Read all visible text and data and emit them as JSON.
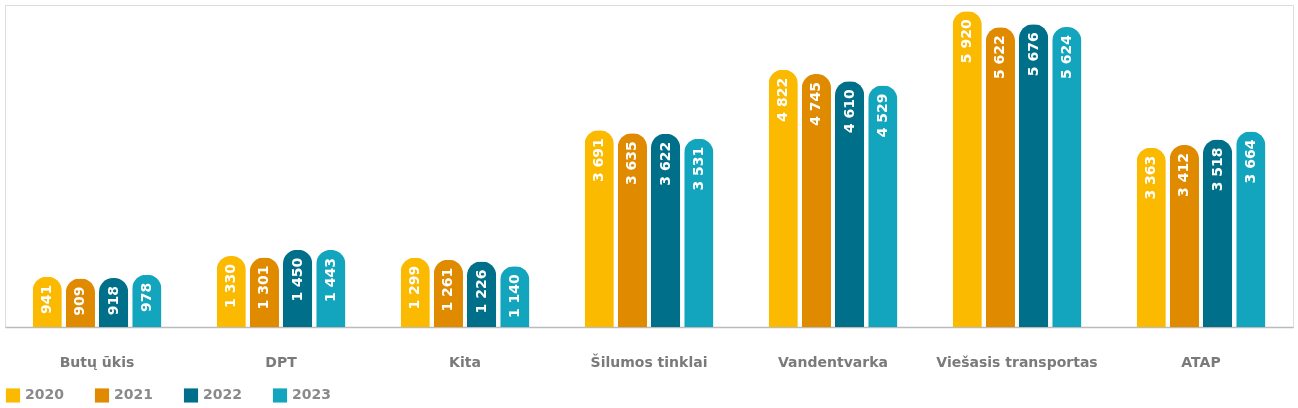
{
  "chart_data": {
    "type": "bar",
    "categories": [
      "Butų ūkis",
      "DPT",
      "Kita",
      "Šilumos tinklai",
      "Vandentvarka",
      "Viešasis transportas",
      "ATAP"
    ],
    "series": [
      {
        "name": "2020",
        "color": "#fbb900",
        "values": [
          941,
          1330,
          1299,
          3691,
          4822,
          5920,
          3363
        ],
        "value_labels": [
          "941",
          "1 330",
          "1 299",
          "3 691",
          "4 822",
          "5 920",
          "3 363"
        ]
      },
      {
        "name": "2021",
        "color": "#e08a00",
        "values": [
          909,
          1301,
          1261,
          3635,
          4745,
          5622,
          3412
        ],
        "value_labels": [
          "909",
          "1 301",
          "1 261",
          "3 635",
          "4 745",
          "5 622",
          "3 412"
        ]
      },
      {
        "name": "2022",
        "color": "#00708a",
        "values": [
          918,
          1450,
          1226,
          3622,
          4610,
          5676,
          3518
        ],
        "value_labels": [
          "918",
          "1 450",
          "1 226",
          "3 622",
          "4 610",
          "5 676",
          "3 518"
        ]
      },
      {
        "name": "2023",
        "color": "#12a5bd",
        "values": [
          978,
          1443,
          1140,
          3531,
          4529,
          5624,
          3664
        ],
        "value_labels": [
          "978",
          "1 443",
          "1 140",
          "3 531",
          "4 529",
          "5 624",
          "3 664"
        ]
      }
    ],
    "legend": "bottom",
    "grid": false
  }
}
